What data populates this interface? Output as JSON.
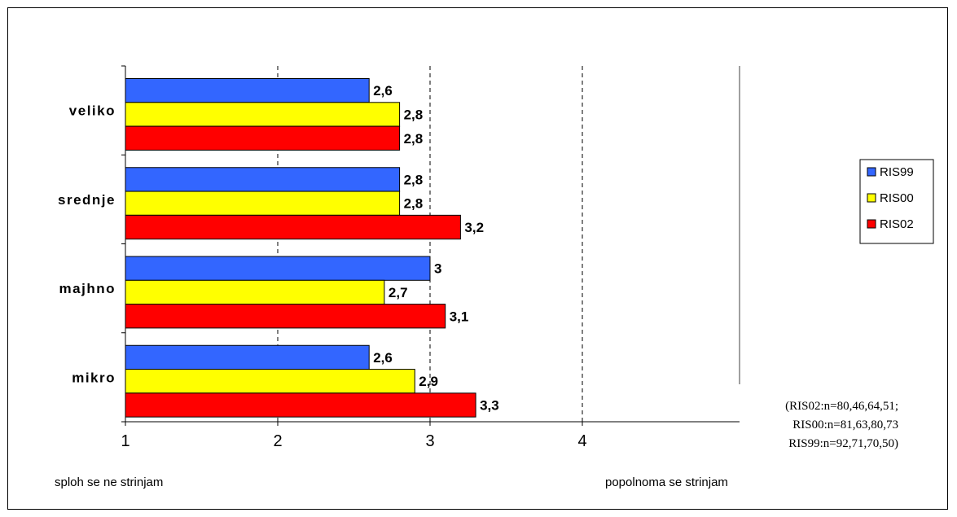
{
  "chart_data": {
    "type": "bar",
    "orientation": "horizontal",
    "categories": [
      "veliko",
      "srednje",
      "majhno",
      "mikro"
    ],
    "series": [
      {
        "name": "RIS99",
        "color": "#3366ff",
        "values": [
          2.6,
          2.8,
          3.0,
          2.6
        ],
        "labels": [
          "2,6",
          "2,8",
          "3",
          "2,6"
        ]
      },
      {
        "name": "RIS00",
        "color": "#ffff00",
        "values": [
          2.8,
          2.8,
          2.7,
          2.9
        ],
        "labels": [
          "2,8",
          "2,8",
          "2,7",
          "2,9"
        ]
      },
      {
        "name": "RIS02",
        "color": "#ff0000",
        "values": [
          2.8,
          3.2,
          3.1,
          3.3
        ],
        "labels": [
          "2,8",
          "3,2",
          "3,1",
          "3,3"
        ]
      }
    ],
    "xlim": [
      1,
      5
    ],
    "x_ticks": [
      1,
      2,
      3,
      4
    ],
    "x_tick_labels": [
      "1",
      "2",
      "3",
      "4"
    ],
    "low_label": "sploh se ne strinjam",
    "high_label": "popolnoma se strinjam",
    "grid": "vertical dashed",
    "legend": {
      "position": "right",
      "items": [
        "RIS99",
        "RIS00",
        "RIS02"
      ]
    },
    "note": [
      "(RIS02:n=80,46,64,51;",
      "RIS00:n=81,63,80,73",
      "RIS99:n=92,71,70,50)"
    ]
  }
}
